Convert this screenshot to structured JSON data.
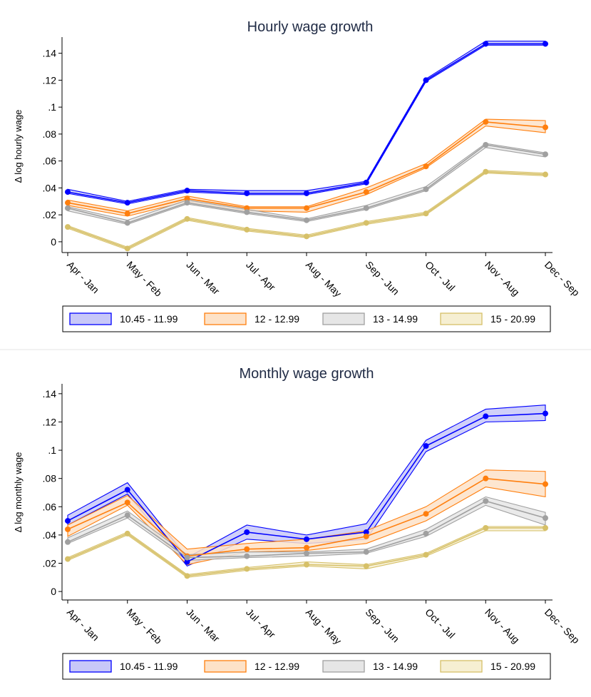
{
  "colors": {
    "s1": "#0000ff",
    "s1fill": "#c8c8f8",
    "s2": "#ff7f0e",
    "s2fill": "#fde2c8",
    "s3": "#a0a0a0",
    "s3fill": "#e6e6e6",
    "s4": "#d6c068",
    "s4fill": "#f6efd2"
  },
  "chart_data": [
    {
      "type": "line",
      "title": "Hourly wage growth",
      "xlabel": "",
      "ylabel": "Δ log hourly wage",
      "ylim": [
        -0.008,
        0.152
      ],
      "yticks": [
        0,
        0.02,
        0.04,
        0.06,
        0.08,
        0.1,
        0.12,
        0.14
      ],
      "ytick_labels": [
        "0",
        ".02",
        ".04",
        ".06",
        ".08",
        ".1",
        ".12",
        ".14"
      ],
      "categories": [
        "Apr - Jan",
        "May - Feb",
        "Jun - Mar",
        "Jul - Apr",
        "Aug - May",
        "Sep - Jun",
        "Oct - Jul",
        "Nov - Aug",
        "Dec - Sep"
      ],
      "grid": false,
      "legend": "bottom",
      "series": [
        {
          "name": "10.45 - 11.99",
          "values": [
            0.037,
            0.029,
            0.038,
            0.036,
            0.036,
            0.044,
            0.12,
            0.147,
            0.147
          ],
          "lower": [
            0.036,
            0.028,
            0.037,
            0.035,
            0.035,
            0.043,
            0.119,
            0.146,
            0.146
          ],
          "upper": [
            0.039,
            0.03,
            0.039,
            0.038,
            0.038,
            0.045,
            0.121,
            0.149,
            0.149
          ]
        },
        {
          "name": "12 - 12.99",
          "values": [
            0.029,
            0.021,
            0.032,
            0.025,
            0.025,
            0.037,
            0.056,
            0.089,
            0.085
          ],
          "lower": [
            0.027,
            0.019,
            0.03,
            0.023,
            0.022,
            0.035,
            0.055,
            0.086,
            0.081
          ],
          "upper": [
            0.031,
            0.023,
            0.034,
            0.026,
            0.026,
            0.04,
            0.058,
            0.091,
            0.09
          ]
        },
        {
          "name": "13 - 14.99",
          "values": [
            0.025,
            0.014,
            0.029,
            0.022,
            0.016,
            0.025,
            0.039,
            0.072,
            0.065
          ],
          "lower": [
            0.023,
            0.013,
            0.028,
            0.021,
            0.015,
            0.024,
            0.038,
            0.07,
            0.063
          ],
          "upper": [
            0.026,
            0.016,
            0.031,
            0.024,
            0.017,
            0.027,
            0.041,
            0.073,
            0.066
          ]
        },
        {
          "name": "15 - 20.99",
          "values": [
            0.011,
            -0.005,
            0.017,
            0.009,
            0.004,
            0.014,
            0.021,
            0.052,
            0.05
          ],
          "lower": [
            0.01,
            -0.006,
            0.016,
            0.008,
            0.003,
            0.013,
            0.02,
            0.051,
            0.049
          ],
          "upper": [
            0.012,
            -0.004,
            0.018,
            0.01,
            0.005,
            0.015,
            0.022,
            0.053,
            0.051
          ]
        }
      ]
    },
    {
      "type": "line",
      "title": "Monthly wage growth",
      "xlabel": "",
      "ylabel": "Δ log monthly wage",
      "ylim": [
        -0.006,
        0.147
      ],
      "yticks": [
        0,
        0.02,
        0.04,
        0.06,
        0.08,
        0.1,
        0.12,
        0.14
      ],
      "ytick_labels": [
        "0",
        ".02",
        ".04",
        ".06",
        ".08",
        ".1",
        ".12",
        ".14"
      ],
      "categories": [
        "Apr - Jan",
        "May - Feb",
        "Jun - Mar",
        "Jul - Apr",
        "Aug - May",
        "Sep - Jun",
        "Oct - Jul",
        "Nov - Aug",
        "Dec - Sep"
      ],
      "grid": false,
      "legend": "bottom",
      "series": [
        {
          "name": "10.45 - 11.99",
          "values": [
            0.05,
            0.072,
            0.021,
            0.042,
            0.037,
            0.042,
            0.103,
            0.124,
            0.126
          ],
          "lower": [
            0.047,
            0.069,
            0.018,
            0.037,
            0.034,
            0.037,
            0.099,
            0.12,
            0.121
          ],
          "upper": [
            0.054,
            0.077,
            0.024,
            0.047,
            0.04,
            0.048,
            0.107,
            0.129,
            0.132
          ]
        },
        {
          "name": "12 - 12.99",
          "values": [
            0.044,
            0.063,
            0.025,
            0.03,
            0.031,
            0.039,
            0.055,
            0.08,
            0.076
          ],
          "lower": [
            0.039,
            0.061,
            0.019,
            0.028,
            0.029,
            0.034,
            0.05,
            0.074,
            0.067
          ],
          "upper": [
            0.047,
            0.068,
            0.03,
            0.034,
            0.037,
            0.043,
            0.06,
            0.086,
            0.085
          ]
        },
        {
          "name": "13 - 14.99",
          "values": [
            0.035,
            0.054,
            0.024,
            0.025,
            0.027,
            0.028,
            0.041,
            0.064,
            0.052
          ],
          "lower": [
            0.034,
            0.052,
            0.022,
            0.024,
            0.025,
            0.027,
            0.039,
            0.061,
            0.047
          ],
          "upper": [
            0.038,
            0.057,
            0.026,
            0.028,
            0.028,
            0.03,
            0.044,
            0.067,
            0.056
          ]
        },
        {
          "name": "15 - 20.99",
          "values": [
            0.023,
            0.041,
            0.011,
            0.016,
            0.019,
            0.018,
            0.026,
            0.045,
            0.045
          ],
          "lower": [
            0.022,
            0.04,
            0.01,
            0.015,
            0.018,
            0.016,
            0.025,
            0.043,
            0.043
          ],
          "upper": [
            0.024,
            0.042,
            0.012,
            0.017,
            0.021,
            0.019,
            0.027,
            0.046,
            0.046
          ]
        }
      ]
    }
  ]
}
